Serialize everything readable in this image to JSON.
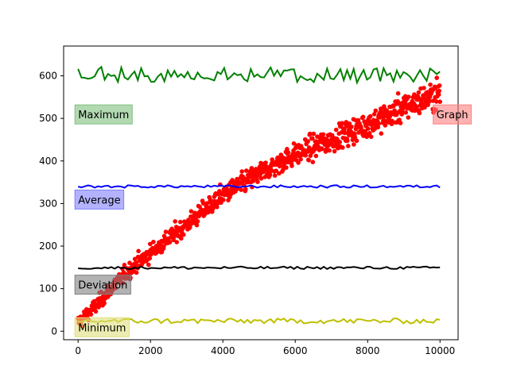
{
  "chart_data": {
    "type": "scatter",
    "title": "",
    "xlabel": "",
    "ylabel": "",
    "xlim": [
      -400,
      10500
    ],
    "ylim": [
      -20,
      670
    ],
    "xticks": [
      0,
      2000,
      4000,
      6000,
      8000,
      10000
    ],
    "yticks": [
      0,
      100,
      200,
      300,
      400,
      500,
      600
    ],
    "grid": false,
    "series": [
      {
        "name": "",
        "kind": "scatter",
        "color": "#ff0000",
        "trend": {
          "x": [
            0,
            500,
            1000,
            1500,
            2000,
            3000,
            4000,
            5000,
            6000,
            7000,
            8000,
            9000,
            10000
          ],
          "y": [
            20,
            60,
            110,
            150,
            185,
            250,
            320,
            370,
            415,
            450,
            485,
            525,
            560
          ]
        },
        "spread": 35,
        "x_range": [
          0,
          10000
        ]
      },
      {
        "name": "",
        "kind": "line",
        "color": "#008000",
        "mean": 603,
        "amplitude": 18,
        "x_range": [
          0,
          10000
        ]
      },
      {
        "name": "",
        "kind": "line",
        "color": "#0000ff",
        "mean": 340,
        "amplitude": 3,
        "x_range": [
          0,
          10000
        ]
      },
      {
        "name": "",
        "kind": "line",
        "color": "#000000",
        "mean": 149,
        "amplitude": 3,
        "x_range": [
          0,
          10000
        ]
      },
      {
        "name": "",
        "kind": "line",
        "color": "#bfbf00",
        "mean": 24,
        "amplitude": 6,
        "x_range": [
          0,
          10000
        ]
      }
    ],
    "annotations": [
      {
        "text": "Maximum",
        "x": 0,
        "y": 500,
        "bg": "#7fbf7f"
      },
      {
        "text": "Average",
        "x": 0,
        "y": 300,
        "bg": "#7f7fff"
      },
      {
        "text": "Deviation",
        "x": 0,
        "y": 100,
        "bg": "#7f7f7f"
      },
      {
        "text": "Minimum",
        "x": 0,
        "y": 0,
        "bg": "#dfdf7f"
      },
      {
        "text": "Graph",
        "x": 9900,
        "y": 500,
        "bg": "#ff7f7f"
      }
    ]
  }
}
